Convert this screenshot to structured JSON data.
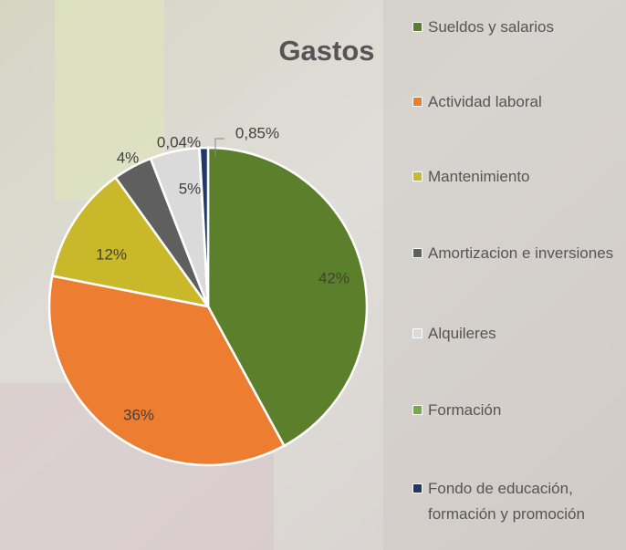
{
  "chart_data": {
    "type": "pie",
    "title": "Gastos",
    "categories": [
      "Sueldos y salarios",
      "Actividad laboral",
      "Mantenimiento",
      "Amortizacion e inversiones",
      "Alquileres",
      "Formación",
      "Fondo de educación, formación y promoción"
    ],
    "values": [
      42,
      36,
      12,
      4,
      5,
      0.04,
      0.85
    ],
    "value_labels": [
      "42%",
      "36%",
      "12%",
      "4%",
      "5%",
      "0,04%",
      "0,85%"
    ],
    "colors": [
      "#5b7f2b",
      "#ed7d31",
      "#c8b82a",
      "#5f5f5f",
      "#dadada",
      "#70ad47",
      "#1f3864"
    ],
    "legend": "right"
  }
}
